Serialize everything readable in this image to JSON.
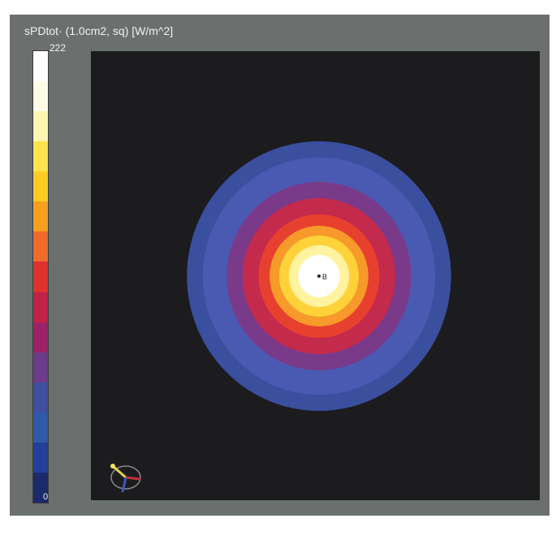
{
  "viewer": {
    "title": "sPDtot· (1.0cm2, sq) [W/m^2]",
    "colorbar": {
      "max_label": "222",
      "min_label": "0",
      "colors_top_to_bottom": [
        "#ffffff",
        "#fffbe6",
        "#fff5b0",
        "#ffe34d",
        "#ffcc22",
        "#f7a020",
        "#f06a2a",
        "#e0302e",
        "#c02248",
        "#9c2268",
        "#6e3a8a",
        "#3f4f9e",
        "#2f5aa8",
        "#22409a",
        "#1a2a6a"
      ]
    },
    "field_plot": {
      "background": "#1c1c1e",
      "rings_outer_to_inner": [
        "#3a4f9e",
        "#4a5ab2",
        "#7a3a8a",
        "#c42a4c",
        "#e8402e",
        "#f79a2a",
        "#ffd23a",
        "#fff3a0",
        "#ffffff"
      ],
      "marker_label": "B"
    },
    "icons": {
      "axis_gizmo": "axis-orientation-icon"
    }
  }
}
